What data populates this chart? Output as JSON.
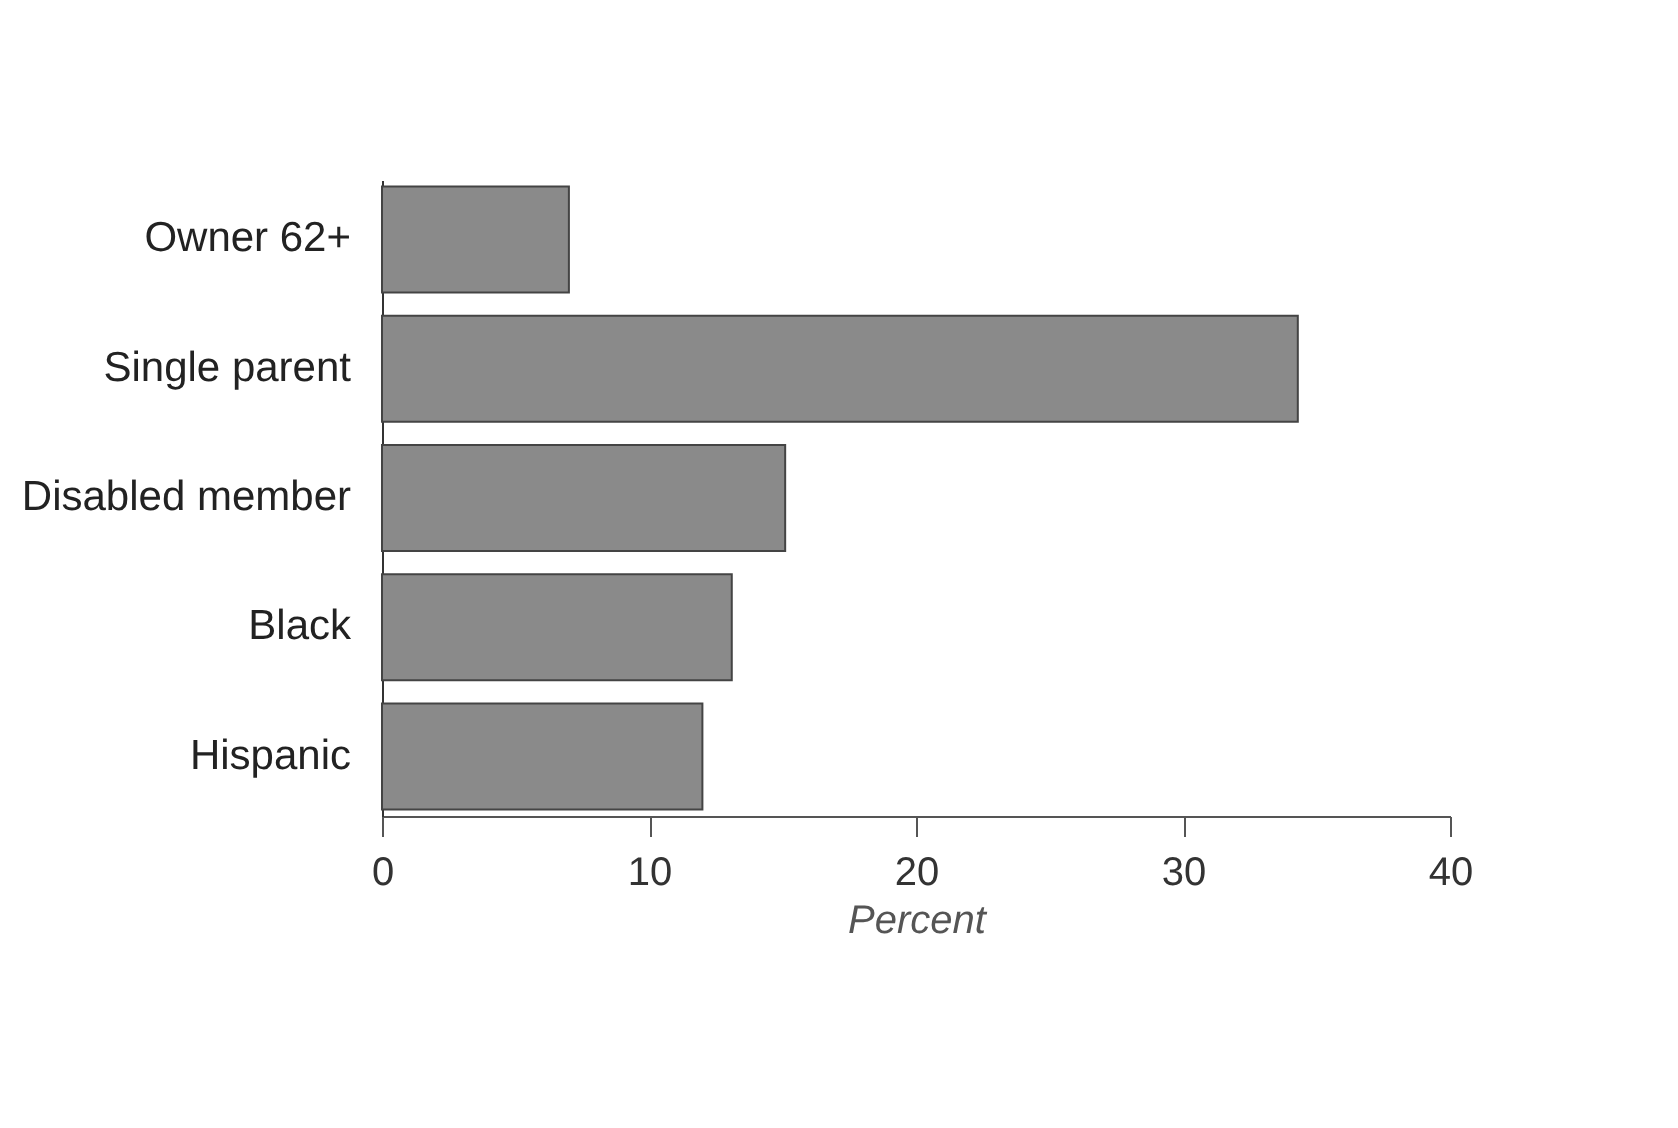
{
  "chart_data": {
    "type": "bar",
    "orientation": "horizontal",
    "xlabel": "Percent",
    "categories": [
      "Owner 62+",
      "Single parent",
      "Disabled member",
      "Black",
      "Hispanic"
    ],
    "values": [
      7.0,
      34.3,
      15.1,
      13.1,
      12.0
    ],
    "color": "#8a8a8a",
    "xlim": [
      0,
      40
    ],
    "xticks": [
      0,
      10,
      20,
      30,
      40
    ],
    "grid": false
  }
}
